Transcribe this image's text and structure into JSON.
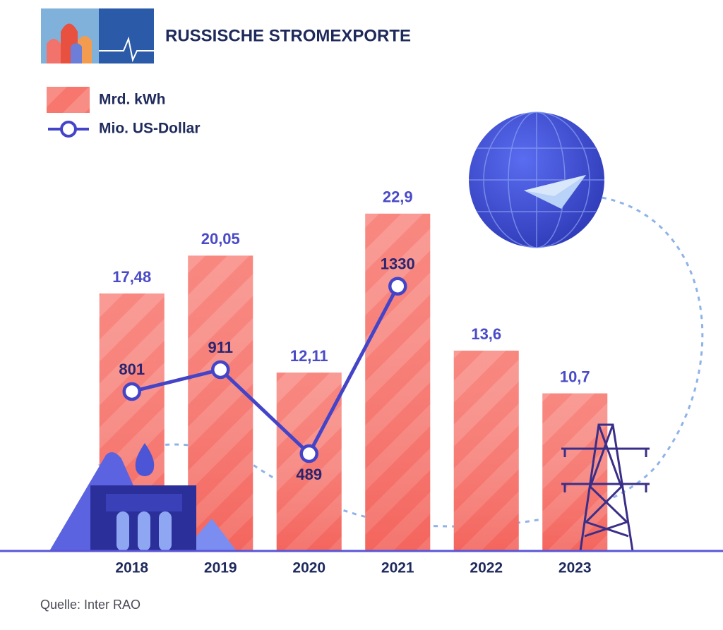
{
  "chart_data": {
    "type": "bar",
    "title": "RUSSISCHE STROMEXPORTE",
    "source": "Quelle: Inter RAO",
    "categories": [
      "2018",
      "2019",
      "2020",
      "2021",
      "2022",
      "2023"
    ],
    "series": [
      {
        "name": "Mrd. kWh",
        "type": "bar",
        "color": "#f7776f",
        "values": [
          17.48,
          20.05,
          12.11,
          22.9,
          13.6,
          10.7
        ],
        "value_labels": [
          "17,48",
          "20,05",
          "12,11",
          "22,9",
          "13,6",
          "10,7"
        ]
      },
      {
        "name": "Mio. US-Dollar",
        "type": "line",
        "axis": "y2",
        "color": "#4444c9",
        "values": [
          801,
          911,
          489,
          1330,
          null,
          null
        ]
      }
    ],
    "ylim": [
      0,
      25
    ],
    "y2lim": [
      0,
      1850
    ],
    "grid": false
  }
}
